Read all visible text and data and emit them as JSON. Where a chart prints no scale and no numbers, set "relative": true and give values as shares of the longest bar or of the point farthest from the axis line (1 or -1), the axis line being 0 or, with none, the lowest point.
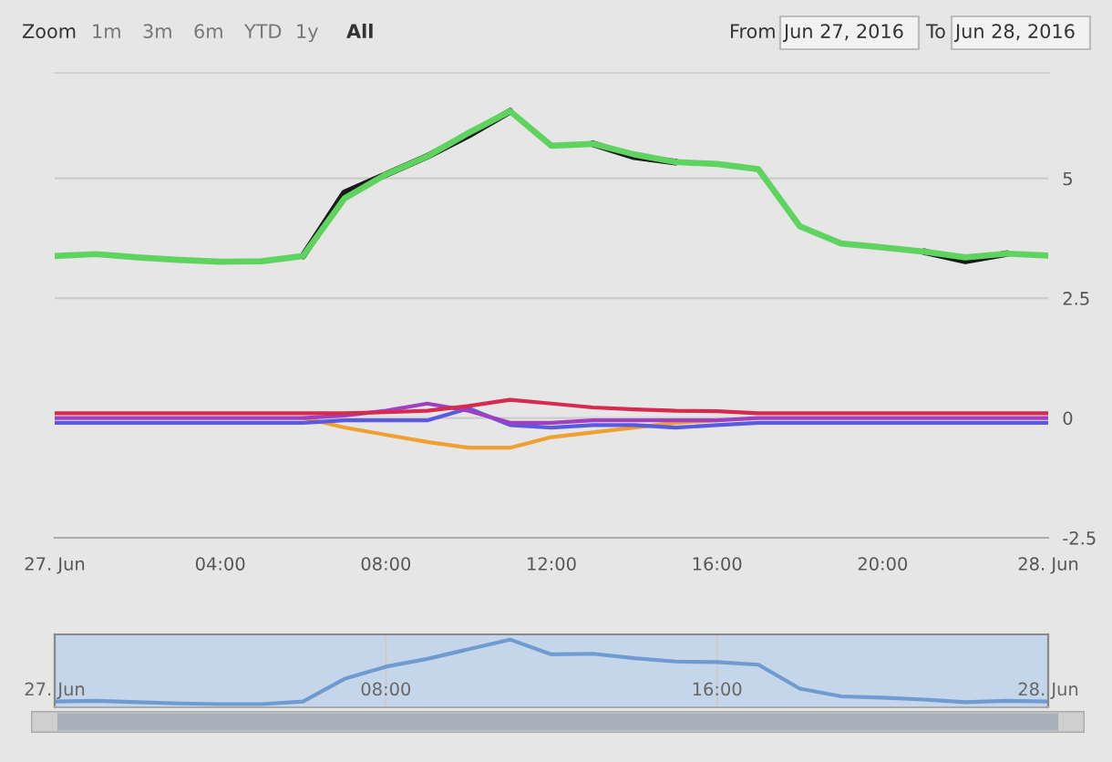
{
  "chart_data": [
    {
      "type": "line",
      "annotations": [
        "Zoom",
        "1m",
        "3m",
        "6m",
        "YTD",
        "1y",
        "All",
        "From",
        "Jun 27, 2016",
        "To",
        "Jun 28, 2016"
      ],
      "x": [
        0,
        1,
        2,
        3,
        4,
        5,
        6,
        7,
        8,
        9,
        10,
        11,
        12,
        13,
        14,
        15,
        16,
        17,
        18,
        19,
        20,
        21,
        22,
        23,
        24
      ],
      "series": [
        {
          "color": "#1a1a1a",
          "values": [
            null,
            null,
            null,
            null,
            null,
            null,
            3.38,
            4.7,
            5.08,
            5.46,
            5.9,
            6.4,
            null,
            5.72,
            5.45,
            5.34,
            null,
            null,
            null,
            null,
            null,
            3.47,
            3.28,
            3.43,
            null
          ]
        },
        {
          "color": "#5fd35f",
          "values": [
            3.38,
            3.42,
            3.35,
            3.3,
            3.26,
            3.27,
            3.38,
            4.58,
            5.08,
            5.46,
            5.95,
            6.4,
            5.68,
            5.72,
            5.5,
            5.34,
            5.3,
            5.19,
            4.0,
            3.64,
            3.56,
            3.47,
            3.35,
            3.43,
            3.39
          ]
        },
        {
          "color": "#f0a030",
          "values": [
            null,
            null,
            null,
            null,
            null,
            null,
            0,
            -0.2,
            -0.35,
            -0.5,
            -0.62,
            -0.62,
            -0.4,
            -0.3,
            -0.2,
            -0.1,
            -0.05,
            null,
            null,
            null,
            null,
            null,
            null,
            null,
            null
          ]
        },
        {
          "color": "#5a5ae0",
          "values": [
            -0.1,
            -0.1,
            -0.1,
            -0.1,
            -0.1,
            -0.1,
            -0.1,
            -0.05,
            -0.05,
            -0.05,
            0.2,
            -0.15,
            -0.2,
            -0.15,
            -0.15,
            -0.2,
            -0.15,
            -0.1,
            -0.1,
            -0.1,
            -0.1,
            -0.1,
            -0.1,
            -0.1,
            -0.1
          ]
        },
        {
          "color": "#a040c0",
          "values": [
            0,
            0,
            0,
            0,
            0,
            0,
            0,
            0.05,
            0.15,
            0.3,
            0.15,
            -0.1,
            -0.1,
            -0.05,
            -0.05,
            -0.05,
            -0.05,
            0,
            0,
            0,
            0,
            0,
            0,
            0,
            0
          ]
        },
        {
          "color": "#d62a4f",
          "values": [
            0.1,
            0.1,
            0.1,
            0.1,
            0.1,
            0.1,
            0.1,
            0.1,
            0.12,
            0.15,
            0.25,
            0.38,
            0.3,
            0.22,
            0.18,
            0.15,
            0.14,
            0.1,
            0.1,
            0.1,
            0.1,
            0.1,
            0.1,
            0.1,
            0.1
          ]
        }
      ],
      "xlim": [
        0,
        24
      ],
      "xticks": [
        {
          "value": 0,
          "label": "27. Jun"
        },
        {
          "value": 4,
          "label": "04:00"
        },
        {
          "value": 8,
          "label": "08:00"
        },
        {
          "value": 12,
          "label": "12:00"
        },
        {
          "value": 16,
          "label": "16:00"
        },
        {
          "value": 20,
          "label": "20:00"
        },
        {
          "value": 24,
          "label": "28. Jun"
        }
      ],
      "ylim": [
        -2.5,
        7.2
      ],
      "yticks": [
        -2.5,
        0,
        2.5,
        5
      ],
      "grid": "y",
      "legend": false,
      "line_style": "solid"
    },
    {
      "type": "line",
      "relative": true,
      "x": [
        0,
        1,
        2,
        3,
        4,
        5,
        6,
        7,
        8,
        9,
        10,
        11,
        12,
        13,
        14,
        15,
        16,
        17,
        18,
        19,
        20,
        21,
        22,
        23,
        24
      ],
      "series": [
        {
          "color": "#6f9bd1",
          "values": [
            0.04,
            0.05,
            0.03,
            0.01,
            0,
            0,
            0.04,
            0.39,
            0.58,
            0.7,
            0.85,
            1,
            0.77,
            0.78,
            0.71,
            0.66,
            0.65,
            0.61,
            0.24,
            0.12,
            0.1,
            0.07,
            0.03,
            0.05,
            0.04
          ]
        }
      ],
      "xlim": [
        0,
        24
      ],
      "xticks": [
        {
          "value": 0,
          "label": "27. Jun"
        },
        {
          "value": 8,
          "label": "08:00"
        },
        {
          "value": 16,
          "label": "16:00"
        },
        {
          "value": 24,
          "label": "28. Jun"
        }
      ],
      "grid": "x",
      "legend": false
    }
  ]
}
